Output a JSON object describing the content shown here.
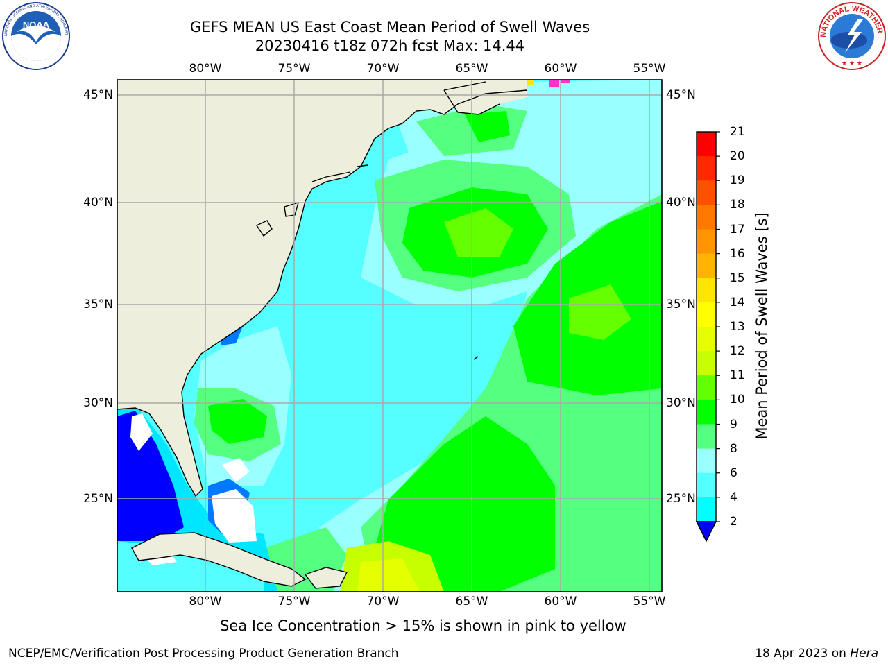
{
  "header": {
    "title_line1": "GEFS MEAN US East Coast Mean Period of Swell Waves",
    "title_line2": "20230416 t18z 072h fcst   Max: 14.44"
  },
  "logos": {
    "left": "NOAA",
    "left_ring_text": "NATIONAL OCEANIC AND ATMOSPHERIC ADMINISTRATION · U.S. DEPARTMENT OF COMMERCE",
    "right_ring_text": "NATIONAL WEATHER SERVICE"
  },
  "map": {
    "lon_labels": [
      "80°W",
      "75°W",
      "70°W",
      "65°W",
      "60°W",
      "55°W"
    ],
    "lat_labels": [
      "45°N",
      "40°N",
      "35°N",
      "30°N",
      "25°N"
    ]
  },
  "colorbar": {
    "label": "Mean Period of Swell Waves [s]",
    "ticks": [
      "21",
      "20",
      "19",
      "18",
      "17",
      "16",
      "15",
      "14",
      "13",
      "12",
      "11",
      "10",
      "9",
      "8",
      "6",
      "4",
      "2"
    ],
    "colors": [
      "#ff0000",
      "#ff2800",
      "#ff5000",
      "#ff7800",
      "#ff9600",
      "#ffb400",
      "#ffe600",
      "#ffff00",
      "#e6ff00",
      "#c8ff00",
      "#64ff00",
      "#00ff00",
      "#55ff80",
      "#9affff",
      "#55ffff",
      "#00ffff",
      "#00e6ff",
      "#0078ff"
    ],
    "extend_color": "#0000ff"
  },
  "note": "Sea Ice Concentration > 15% is shown in pink to yellow",
  "footer": {
    "left": "NCEP/EMC/Verification Post Processing Product Generation Branch",
    "right_date": "18 Apr 2023 on ",
    "right_host": "Hera"
  }
}
